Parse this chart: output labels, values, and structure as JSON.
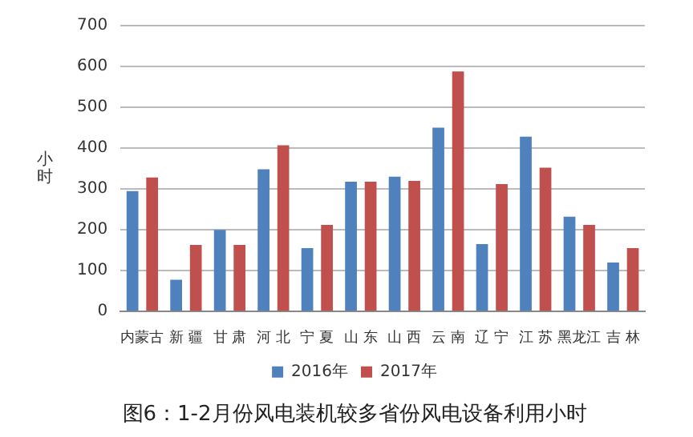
{
  "chart_data": {
    "type": "bar",
    "title": "图6：1-2月份风电装机较多省份风电设备利用小时",
    "ylabel": "小时",
    "categories": [
      "内蒙古",
      "新 疆",
      "甘 肃",
      "河 北",
      "宁 夏",
      "山 东",
      "山 西",
      "云 南",
      "辽 宁",
      "江 苏",
      "黑龙江",
      "吉 林"
    ],
    "series": [
      {
        "name": "2016年",
        "color": "#4f81bd",
        "values": [
          295,
          78,
          200,
          348,
          155,
          318,
          330,
          450,
          165,
          428,
          232,
          120
        ]
      },
      {
        "name": "2017年",
        "color": "#c0504d",
        "values": [
          328,
          163,
          163,
          407,
          212,
          318,
          320,
          588,
          312,
          352,
          212,
          155
        ]
      }
    ],
    "ylim": [
      0,
      700
    ],
    "yticks": [
      0,
      100,
      200,
      300,
      400,
      500,
      600,
      700
    ],
    "grid": "y",
    "legend": "bottom"
  }
}
